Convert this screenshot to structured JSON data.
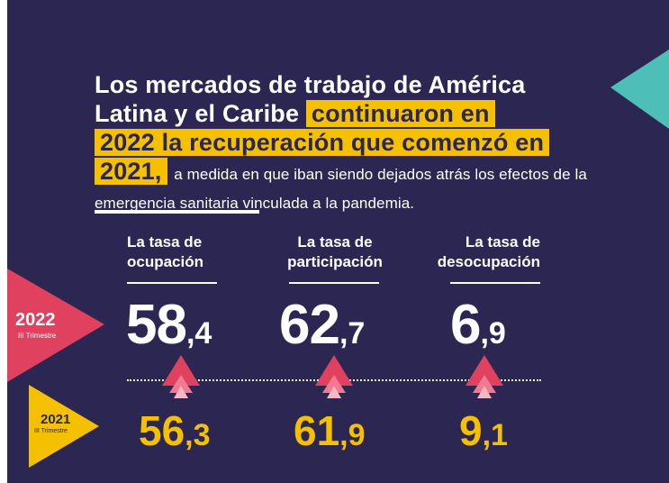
{
  "headline": {
    "line1": "Los mercados de trabajo de América",
    "line2a": "Latina y el Caribe",
    "highlight1": "continuaron en",
    "highlight2": "2022 la recuperación que comenzó en",
    "highlight3": "2021,",
    "subtext": "a medida en que iban siendo dejados atrás los efectos de la emergencia sanitaria vinculada a la pandemia."
  },
  "current": {
    "year": "2022",
    "quarter": "III Trimestre"
  },
  "previous": {
    "year": "2021",
    "quarter": "III Trimestre"
  },
  "indicators": [
    {
      "label_line1": "La tasa de",
      "label_line2": "ocupación",
      "current_int": "58",
      "current_dec": ",4",
      "previous_int": "56",
      "previous_dec": ",3",
      "trend": "up"
    },
    {
      "label_line1": "La tasa de",
      "label_line2": "participación",
      "current_int": "62",
      "current_dec": ",7",
      "previous_int": "61",
      "previous_dec": ",9",
      "trend": "up"
    },
    {
      "label_line1": "La tasa de",
      "label_line2": "desocupación",
      "current_int": "6",
      "current_dec": ",9",
      "previous_int": "9",
      "previous_dec": ",1",
      "trend": "down"
    }
  ],
  "colors": {
    "background": "#2c2653",
    "highlight": "#f5c000",
    "current_marker": "#e0415f",
    "previous_marker": "#f5c000",
    "corner_triangle": "#4dbfb8"
  }
}
